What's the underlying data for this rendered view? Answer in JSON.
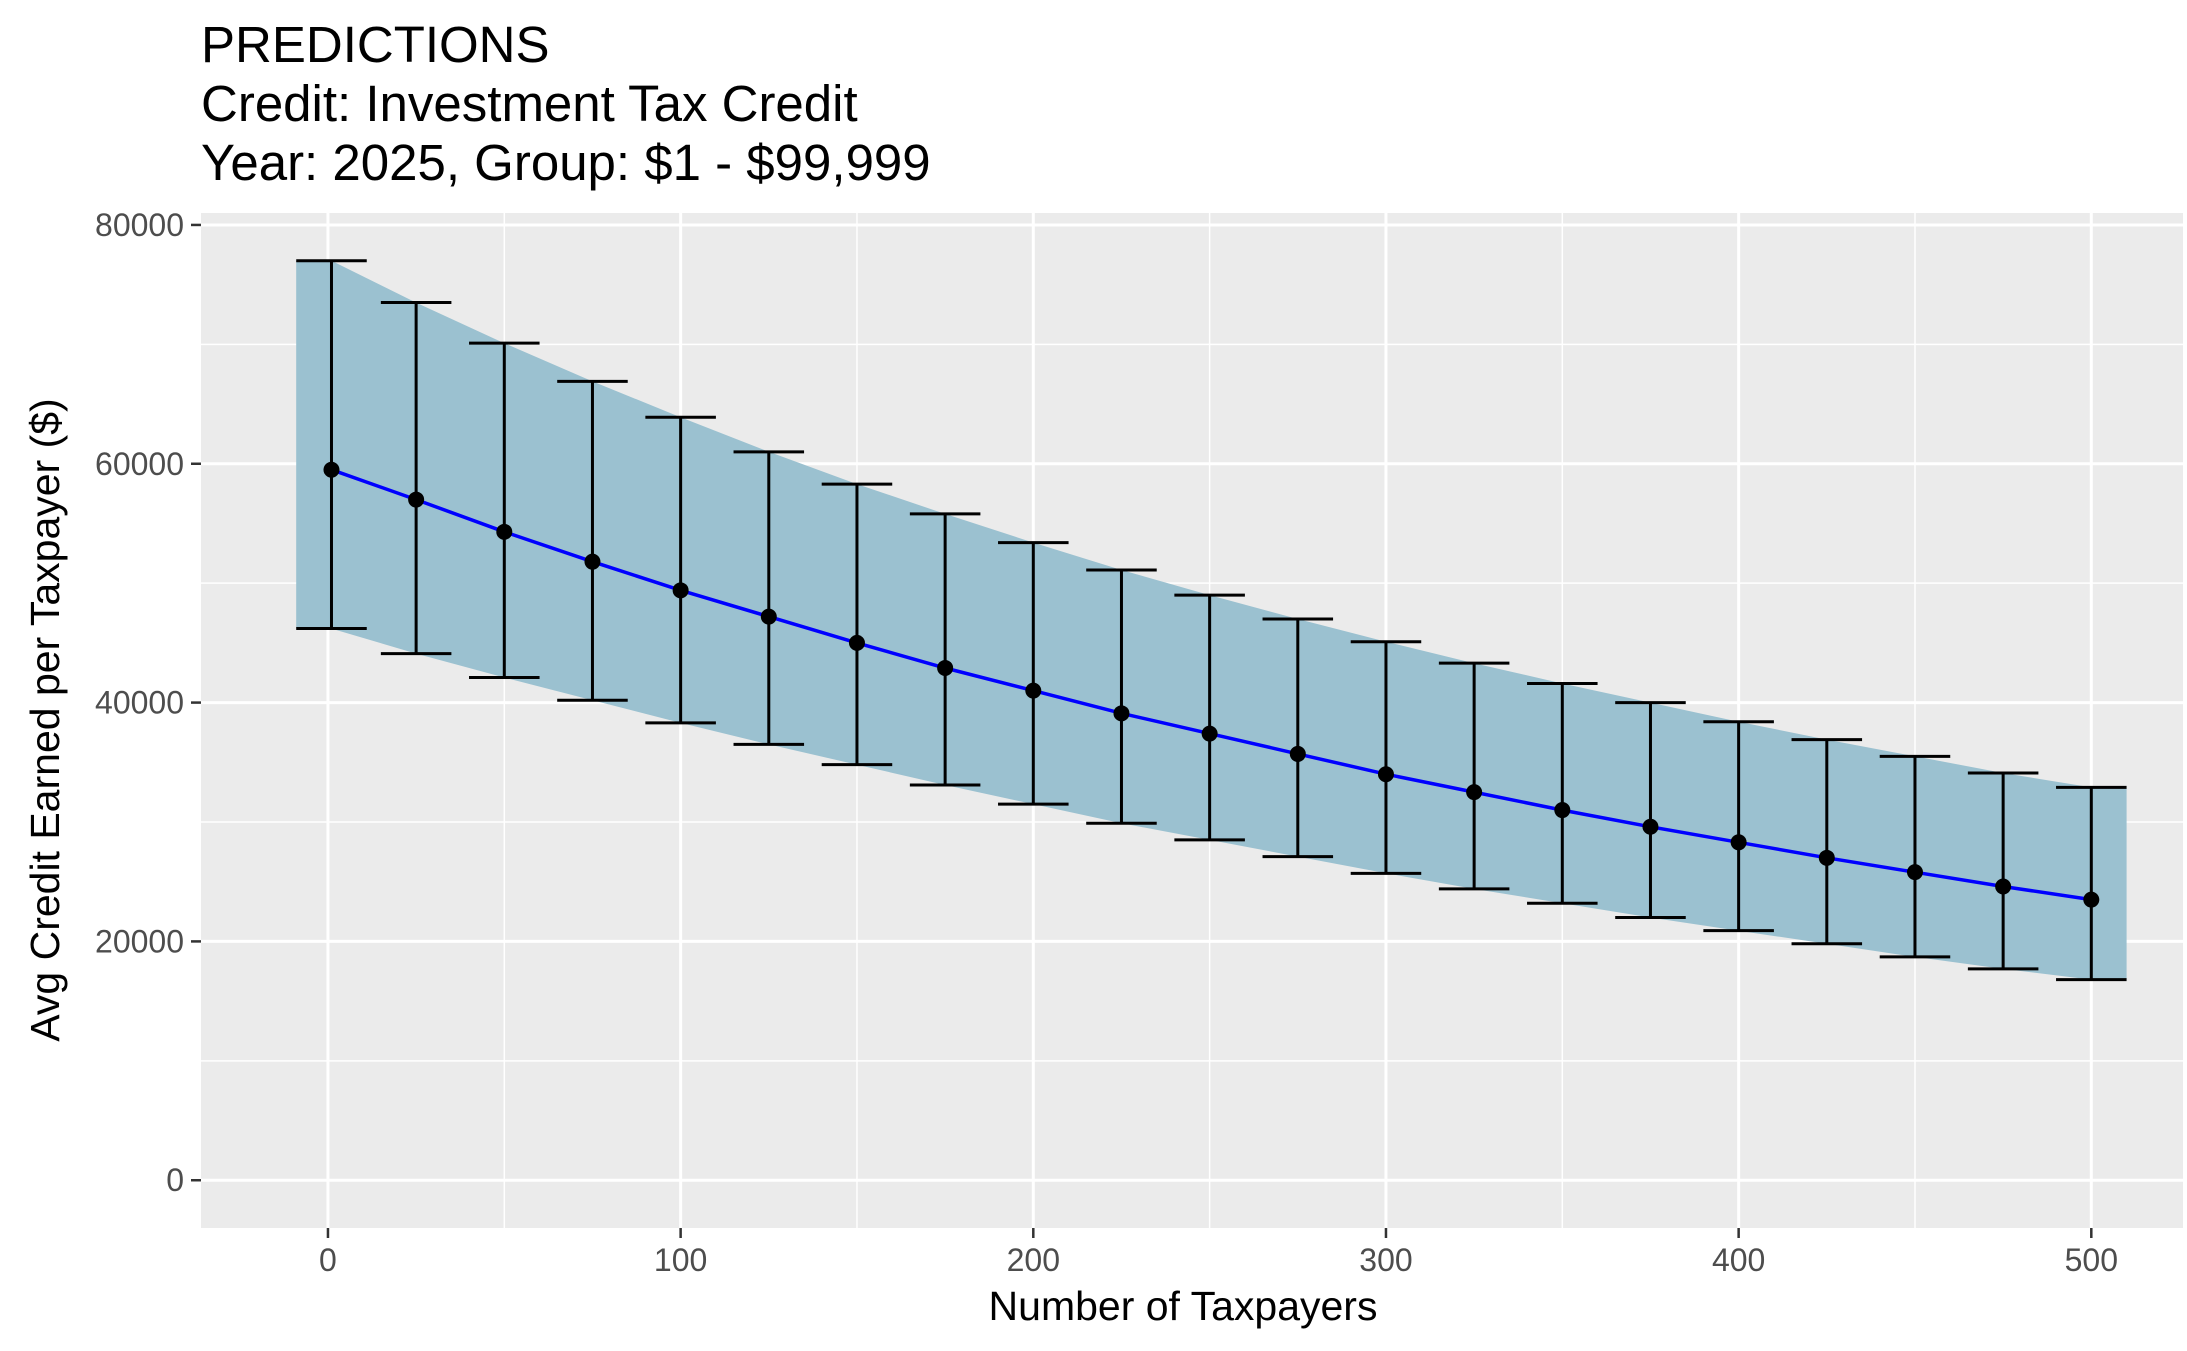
{
  "chart_data": {
    "type": "line",
    "title": "PREDICTIONS",
    "subtitle_lines": [
      "Credit: Investment Tax Credit",
      "Year: 2025, Group: $1 - $99,999"
    ],
    "xlabel": "Number of Taxpayers",
    "ylabel": "Avg Credit Earned per Taxpayer ($)",
    "xlim": [
      -36,
      526
    ],
    "ylim": [
      -4000,
      81000
    ],
    "x_ticks": [
      0,
      100,
      200,
      300,
      400,
      500
    ],
    "x_tick_labels": [
      "0",
      "100",
      "200",
      "300",
      "400",
      "500"
    ],
    "y_ticks": [
      0,
      20000,
      40000,
      60000,
      80000
    ],
    "y_tick_labels": [
      "0",
      "20000",
      "40000",
      "60000",
      "80000"
    ],
    "grid": true,
    "background_color": "#ebebeb",
    "grid_color": "#ffffff",
    "ribbon_color": "#9bc1d0",
    "line_color": "#0000ff",
    "point_color": "#000000",
    "errorbar_color": "#000000",
    "series": [
      {
        "x": [
          1,
          25,
          50,
          75,
          100,
          125,
          150,
          175,
          200,
          225,
          250,
          275,
          300,
          325,
          350,
          375,
          400,
          425,
          450,
          475,
          500
        ],
        "values": [
          59500,
          57000,
          54300,
          51800,
          49400,
          47200,
          45000,
          42900,
          41000,
          39100,
          37400,
          35700,
          34000,
          32500,
          31000,
          29600,
          28300,
          27000,
          25800,
          24600,
          23500
        ],
        "lower": [
          46200,
          44100,
          42100,
          40200,
          38300,
          36500,
          34800,
          33100,
          31500,
          29900,
          28500,
          27100,
          25700,
          24400,
          23200,
          22000,
          20900,
          19800,
          18700,
          17700,
          16800
        ],
        "upper": [
          77000,
          73500,
          70100,
          66900,
          63900,
          61000,
          58300,
          55800,
          53400,
          51100,
          49000,
          47000,
          45100,
          43300,
          41600,
          40000,
          38400,
          36900,
          35500,
          34100,
          32900
        ]
      }
    ]
  }
}
